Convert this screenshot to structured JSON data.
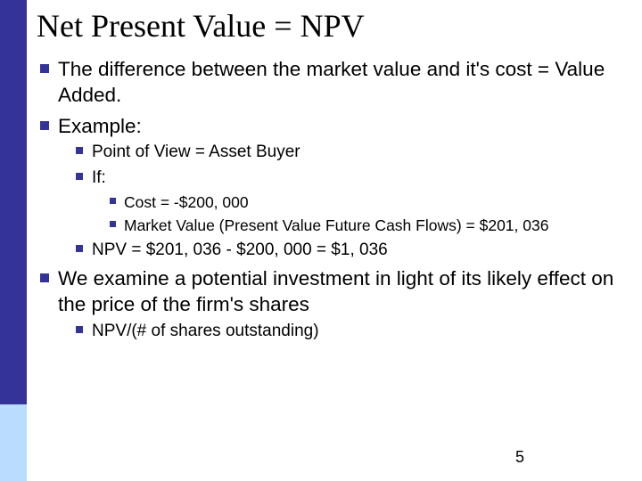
{
  "title": "Net Present Value = NPV",
  "bullets": {
    "b1_1": "The difference between the market value and it's cost = Value Added.",
    "b1_2": "Example:",
    "b2_1": "Point of View = Asset Buyer",
    "b2_2": "If:",
    "b3_1": "Cost = -$200, 000",
    "b3_2": "Market Value (Present Value Future Cash Flows) = $201, 036",
    "b2_3": "NPV = $201, 036 - $200, 000 = $1, 036",
    "b1_3": "We examine a potential investment in light of its likely effect on the price of the firm's shares",
    "b2_4": "NPV/(# of shares outstanding)"
  },
  "page_number": "5",
  "colors": {
    "bullet": "#333399",
    "sidebar_top": "#333399",
    "sidebar_bottom": "#b9dcff",
    "background": "#ffffff",
    "text": "#000000"
  }
}
